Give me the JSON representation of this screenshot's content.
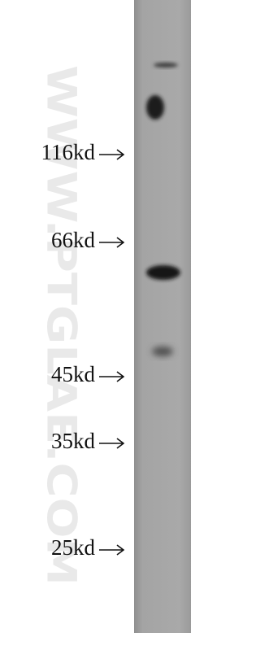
{
  "markers": [
    "116kd",
    "66kd",
    "45kd",
    "35kd",
    "25kd"
  ],
  "watermark": "WWW.PTGLAE.COM"
}
